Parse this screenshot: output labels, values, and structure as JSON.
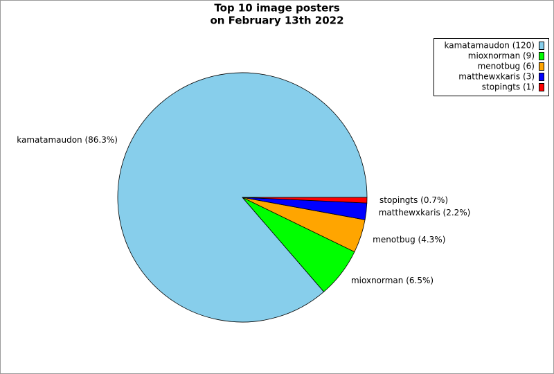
{
  "chart_data": {
    "type": "pie",
    "title": [
      "Top 10 image posters",
      "on February 13th 2022"
    ],
    "values": [
      120,
      9,
      6,
      3,
      1
    ],
    "value_labels": [
      "kamatamaudon (86.3%)",
      "mioxnorman (6.5%)",
      "menotbug (4.3%)",
      "matthewxkaris (2.2%)",
      "stopingts (0.7%)"
    ],
    "legend": [
      "kamatamaudon (120)",
      "mioxnorman (9)",
      "menotbug (6)",
      "matthewxkaris (3)",
      "stopingts (1)"
    ],
    "colors": [
      "#87ceeb",
      "#00ff00",
      "#ffa500",
      "#0000ff",
      "#ff0000"
    ],
    "legend_position": "upper right"
  }
}
